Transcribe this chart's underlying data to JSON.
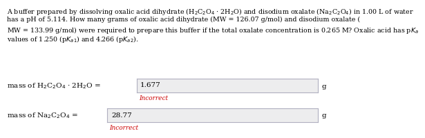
{
  "background_color": "#ffffff",
  "text_color": "#000000",
  "incorrect_color": "#cc0000",
  "box_fill": "#ededee",
  "box_edge": "#b0afc0",
  "font_size_para": 6.8,
  "font_size_label": 7.5,
  "font_size_value": 7.5,
  "font_size_incorrect": 6.5,
  "font_size_unit": 7.5,
  "para_lines": [
    "A buffer prepared by dissolving oxalic acid dihydrate (H$_2$C$_2$O$_4$ $\\cdot$ 2H$_2$O) and disodium oxalate (Na$_2$C$_2$O$_4$) in 1.00 L of water",
    "has a pH of 5.114. How many grams of oxalic acid dihydrate (MW = 126.07 g/mol) and disodium oxalate (",
    "MW = 133.99 g/mol) were required to prepare this buffer if the total oxalate concentration is 0.265 M? Oxalic acid has p$K_a$",
    "values of 1.250 (p$K_{a1}$) and 4.266 (p$K_{a2}$)."
  ],
  "label1": "mass of H$_2$C$_2$O$_4$ $\\cdot$ 2H$_2$O =",
  "value1": "1.677",
  "incorrect1": "Incorrect",
  "label2": "mass of Na$_2$C$_2$O$_4$ =",
  "value2": "28.77",
  "incorrect2": "Incorrect",
  "unit": "g"
}
